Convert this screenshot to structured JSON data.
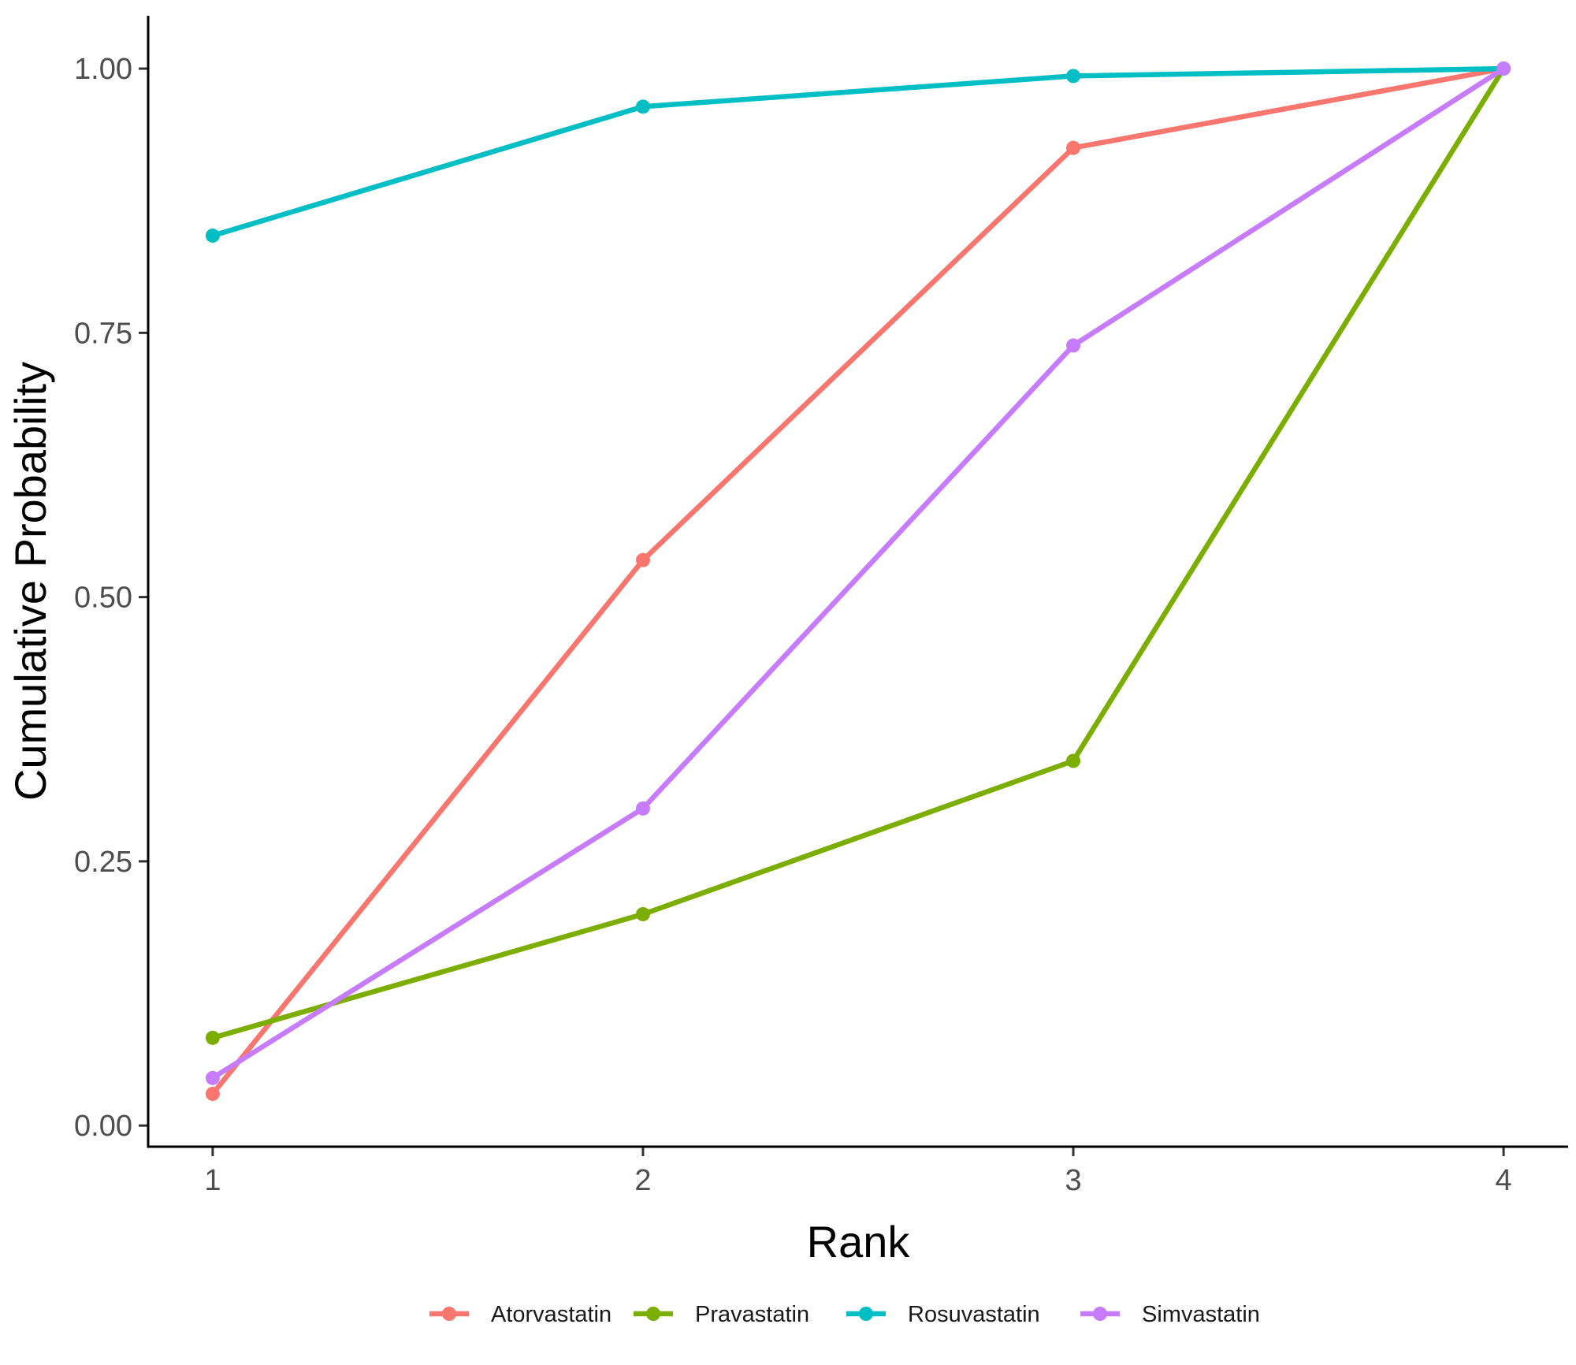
{
  "chart_data": {
    "type": "line",
    "title": "",
    "xlabel": "Rank",
    "ylabel": "Cumulative Probability",
    "x": [
      1,
      2,
      3,
      4
    ],
    "x_ticks": [
      "1",
      "2",
      "3",
      "4"
    ],
    "y_ticks": [
      "0.00",
      "0.25",
      "0.50",
      "0.75",
      "1.00"
    ],
    "y_tick_values": [
      0,
      0.25,
      0.5,
      0.75,
      1.0
    ],
    "xlim": [
      0.85,
      4.15
    ],
    "ylim": [
      -0.02,
      1.05
    ],
    "grid": false,
    "legend_position": "bottom",
    "series": [
      {
        "name": "Atorvastatin",
        "color": "#F8766D",
        "values": [
          0.03,
          0.535,
          0.925,
          1.0
        ]
      },
      {
        "name": "Pravastatin",
        "color": "#7CAE00",
        "values": [
          0.083,
          0.2,
          0.345,
          1.0
        ]
      },
      {
        "name": "Rosuvastatin",
        "color": "#00BFC4",
        "values": [
          0.842,
          0.964,
          0.993,
          1.0
        ]
      },
      {
        "name": "Simvastatin",
        "color": "#C77CFF",
        "values": [
          0.045,
          0.3,
          0.738,
          1.0
        ]
      }
    ]
  }
}
